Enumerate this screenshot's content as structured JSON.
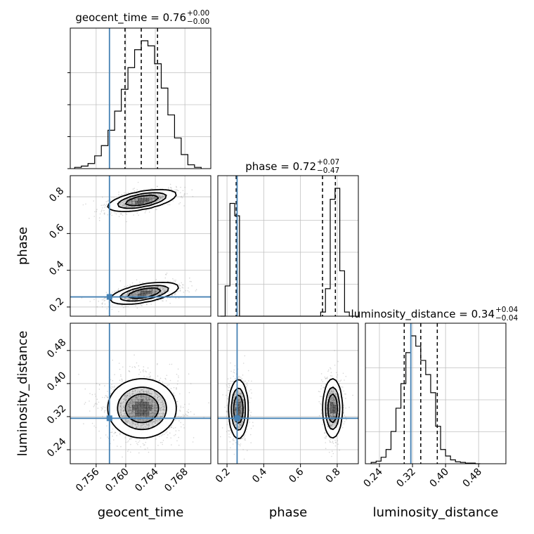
{
  "chart_data": {
    "type": "corner",
    "parameters": [
      "geocent_time",
      "phase",
      "luminosity_distance"
    ],
    "truths": {
      "geocent_time": 0.7578,
      "phase": 0.255,
      "luminosity_distance": 0.316
    },
    "colors": {
      "truth": "#4682b4",
      "hist": "#000000",
      "grid": "#c0c0c0",
      "points": "#8c8c8c"
    },
    "grid": true,
    "titles": [
      {
        "param": "geocent_time",
        "label": "geocent_time = 0.76",
        "plus": "+0.00",
        "minus": "−0.00"
      },
      {
        "param": "phase",
        "label": "phase = 0.72",
        "plus": "+0.07",
        "minus": "−0.47"
      },
      {
        "param": "luminosity_distance",
        "label": "luminosity_distance = 0.34",
        "plus": "+0.04",
        "minus": "−0.04"
      }
    ],
    "axes": {
      "geocent_time": {
        "range": [
          0.7525,
          0.7715
        ],
        "ticks": [
          "0.756",
          "0.760",
          "0.764",
          "0.768"
        ],
        "tick_values": [
          0.756,
          0.76,
          0.764,
          0.768
        ]
      },
      "phase": {
        "range": [
          0.15,
          0.915
        ],
        "ticks": [
          "0.2",
          "0.4",
          "0.6",
          "0.8"
        ],
        "tick_values": [
          0.2,
          0.4,
          0.6,
          0.8
        ]
      },
      "luminosity_distance": {
        "range": [
          0.206,
          0.546
        ],
        "ticks": [
          "0.24",
          "0.32",
          "0.40",
          "0.48"
        ],
        "tick_values": [
          0.24,
          0.32,
          0.4,
          0.48
        ]
      }
    },
    "marginals": {
      "geocent_time": {
        "bin_edges": [
          0.7531,
          0.754,
          0.7549,
          0.7558,
          0.7567,
          0.7576,
          0.7585,
          0.7594,
          0.7603,
          0.7612,
          0.7621,
          0.763,
          0.7639,
          0.7648,
          0.7657,
          0.7666,
          0.7675,
          0.7684,
          0.7693,
          0.7702
        ],
        "counts": [
          0.01,
          0.02,
          0.04,
          0.1,
          0.18,
          0.3,
          0.45,
          0.62,
          0.79,
          0.93,
          1.0,
          0.96,
          0.82,
          0.63,
          0.42,
          0.24,
          0.11,
          0.03,
          0.01
        ],
        "quantiles": [
          0.7599,
          0.7621,
          0.7643
        ]
      },
      "phase": {
        "bin_edges": [
          0.164,
          0.19,
          0.216,
          0.242,
          0.268,
          0.294,
          0.32,
          0.346,
          0.372,
          0.398,
          0.424,
          0.45,
          0.476,
          0.502,
          0.528,
          0.554,
          0.58,
          0.606,
          0.632,
          0.658,
          0.684,
          0.71,
          0.736,
          0.762,
          0.788,
          0.814,
          0.84,
          0.866,
          0.892
        ],
        "counts": [
          0.0,
          0.22,
          0.82,
          0.73,
          0.0,
          0.0,
          0.0,
          0.0,
          0.0,
          0.0,
          0.0,
          0.0,
          0.0,
          0.0,
          0.0,
          0.0,
          0.0,
          0.0,
          0.0,
          0.0,
          0.0,
          0.03,
          0.2,
          0.85,
          0.93,
          0.33,
          0.03,
          0.0
        ],
        "quantiles": [
          0.25,
          0.72,
          0.79
        ]
      },
      "luminosity_distance": {
        "bin_edges": [
          0.22,
          0.232,
          0.244,
          0.256,
          0.268,
          0.28,
          0.292,
          0.304,
          0.316,
          0.328,
          0.34,
          0.352,
          0.364,
          0.376,
          0.388,
          0.4,
          0.412,
          0.424,
          0.436,
          0.448,
          0.46,
          0.472,
          0.484
        ],
        "counts": [
          0.01,
          0.02,
          0.05,
          0.11,
          0.25,
          0.43,
          0.62,
          0.86,
          0.99,
          0.91,
          0.8,
          0.69,
          0.55,
          0.29,
          0.11,
          0.06,
          0.03,
          0.015,
          0.01,
          0.005,
          0.005,
          0.0
        ],
        "quantiles": [
          0.3,
          0.34,
          0.38
        ]
      }
    },
    "joint": [
      {
        "x": "geocent_time",
        "y": "phase",
        "modes": [
          {
            "cx": 0.7622,
            "cy": 0.78,
            "sx": 0.0022,
            "sy": 0.028,
            "rho": 0.55,
            "w": 0.5
          },
          {
            "cx": 0.7625,
            "cy": 0.275,
            "sx": 0.0022,
            "sy": 0.028,
            "rho": 0.55,
            "w": 0.5
          }
        ]
      },
      {
        "x": "geocent_time",
        "y": "luminosity_distance",
        "modes": [
          {
            "cx": 0.7622,
            "cy": 0.34,
            "sx": 0.0022,
            "sy": 0.034,
            "rho": 0.0,
            "w": 1.0
          }
        ]
      },
      {
        "x": "phase",
        "y": "luminosity_distance",
        "modes": [
          {
            "cx": 0.262,
            "cy": 0.338,
            "sx": 0.025,
            "sy": 0.034,
            "rho": 0.0,
            "w": 0.5
          },
          {
            "cx": 0.775,
            "cy": 0.34,
            "sx": 0.025,
            "sy": 0.034,
            "rho": 0.0,
            "w": 0.5
          }
        ]
      }
    ]
  }
}
